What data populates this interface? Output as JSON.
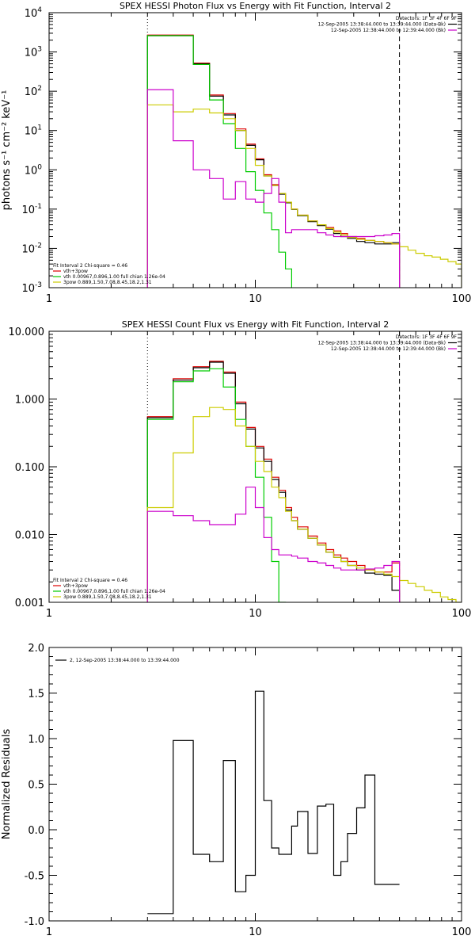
{
  "chart_data": [
    {
      "type": "line",
      "title": "SPEX HESSI Photon Flux vs Energy with Fit Function, Interval 2",
      "xscale": "log",
      "yscale": "log",
      "xlim": [
        1,
        100
      ],
      "ylim": [
        0.001,
        10000
      ],
      "ylabel": "photons s⁻¹ cm⁻² keV⁻¹",
      "xlabel": "",
      "x_tick_labels": [
        "1",
        "10",
        "100"
      ],
      "x_tick_values": [
        1,
        10,
        100
      ],
      "y_tick_values": [
        0.001,
        0.01,
        0.1,
        1,
        10,
        100,
        1000,
        10000
      ],
      "y_ticks": [
        {
          "base": "10",
          "exp": "-3"
        },
        {
          "base": "10",
          "exp": "-2"
        },
        {
          "base": "10",
          "exp": "-1"
        },
        {
          "base": "10",
          "exp": "0"
        },
        {
          "base": "10",
          "exp": "1"
        },
        {
          "base": "10",
          "exp": "2"
        },
        {
          "base": "10",
          "exp": "3"
        },
        {
          "base": "10",
          "exp": "4"
        }
      ],
      "vlines": [
        {
          "x": 3,
          "style": "dotted"
        },
        {
          "x": 50,
          "style": "dashed"
        }
      ],
      "legend_top_right": [
        {
          "text": "Detectors: 1F 3F 4F 6F 9F",
          "color": ""
        },
        {
          "text": "12-Sep-2005 13:38:44.000 to 13:39:44.000 (Data-Bk)",
          "color": "#000000"
        },
        {
          "text": "12-Sep-2005 12:38:44.000 to 12:39:44.000 (Bk)",
          "color": "#cc00cc"
        }
      ],
      "legend_bottom_left": [
        {
          "text": "Fit Interval  2    Chi-square = 0.46",
          "color": ""
        },
        {
          "text": "vth+3pow",
          "color": "#dd0000"
        },
        {
          "text": "vth 0.00967,0.896,1.00   full chian 1.26e-04",
          "color": "#00cc00"
        },
        {
          "text": "3pow 0.889,1.50,7.08,8.45,18.2,1.31",
          "color": "#cccc00"
        }
      ],
      "edges": [
        3,
        4,
        5,
        6,
        7,
        8,
        9,
        10,
        11,
        12,
        13,
        14,
        15,
        16,
        18,
        20,
        22,
        24,
        26,
        28,
        31,
        34,
        38,
        42,
        46,
        50,
        55,
        60,
        66,
        72,
        79,
        86,
        94,
        100
      ],
      "series": [
        {
          "color": "#dd0000",
          "values": [
            2700,
            2700,
            520,
            80,
            27,
            11,
            4.5,
            1.9,
            0.75,
            0.42,
            0.25,
            0.15,
            0.1,
            0.07,
            0.05,
            0.04,
            0.034,
            0.028,
            0.024,
            0.02,
            0.018,
            0.016,
            0.015,
            0.014,
            0.013
          ]
        },
        {
          "color": "#000000",
          "values": [
            2600,
            2600,
            500,
            75,
            25,
            10,
            4.2,
            1.8,
            0.7,
            0.4,
            0.24,
            0.145,
            0.098,
            0.068,
            0.048,
            0.038,
            0.031,
            0.024,
            0.02,
            0.018,
            0.015,
            0.014,
            0.013,
            0.013,
            0.014
          ]
        },
        {
          "color": "#00cc00",
          "values": [
            2600,
            2600,
            480,
            60,
            15,
            3.5,
            0.9,
            0.3,
            0.08,
            0.03,
            0.008,
            0.003,
            0.0009
          ]
        },
        {
          "color": "#cccc00",
          "values": [
            45,
            30,
            35,
            28,
            20,
            10,
            3.5,
            1.3,
            0.7,
            0.4,
            0.25,
            0.15,
            0.1,
            0.07,
            0.05,
            0.04,
            0.032,
            0.026,
            0.022,
            0.019,
            0.017,
            0.016,
            0.015,
            0.014,
            0.013,
            0.011,
            0.009,
            0.0075,
            0.0065,
            0.006,
            0.0053,
            0.0046,
            0.004
          ]
        },
        {
          "color": "#cc00cc",
          "values": [
            110,
            5.5,
            1,
            0.6,
            0.18,
            0.5,
            0.18,
            0.15,
            0.25,
            0.6,
            0.15,
            0.025,
            0.03,
            0.03,
            0.03,
            0.025,
            0.022,
            0.02,
            0.02,
            0.02,
            0.02,
            0.02,
            0.021,
            0.022,
            0.024
          ]
        }
      ]
    },
    {
      "type": "line",
      "title": "SPEX HESSI Count Flux vs Energy with Fit Function, Interval 2",
      "xscale": "log",
      "yscale": "log",
      "xlim": [
        1,
        100
      ],
      "ylim": [
        0.001,
        10
      ],
      "ylabel": "",
      "xlabel": "",
      "x_tick_labels": [
        "1",
        "10",
        "100"
      ],
      "x_tick_values": [
        1,
        10,
        100
      ],
      "y_tick_values": [
        0.001,
        0.01,
        0.1,
        1,
        10
      ],
      "y_tick_labels": [
        "0.001",
        "0.010",
        "0.100",
        "1.000",
        "10.000"
      ],
      "vlines": [
        {
          "x": 3,
          "style": "dotted"
        },
        {
          "x": 50,
          "style": "dashed"
        }
      ],
      "legend_top_right": [
        {
          "text": "Detectors: 1F 3F 4F 6F 9F",
          "color": ""
        },
        {
          "text": "12-Sep-2005 13:38:44.000 to 13:39:44.000 (Data-Bk)",
          "color": "#000000"
        },
        {
          "text": "12-Sep-2005 12:38:44.000 to 12:39:44.000 (Bk)",
          "color": "#cc00cc"
        }
      ],
      "legend_bottom_left": [
        {
          "text": "Fit Interval  2    Chi-square = 0.46",
          "color": ""
        },
        {
          "text": "vth+3pow",
          "color": "#dd0000"
        },
        {
          "text": "vth 0.00967,0.896,1.00   full chian 1.26e-04",
          "color": "#00cc00"
        },
        {
          "text": "3pow 0.889,1.50,7.08,8.45,18.2,1.31",
          "color": "#cccc00"
        }
      ],
      "edges": [
        3,
        4,
        5,
        6,
        7,
        8,
        9,
        10,
        11,
        12,
        13,
        14,
        15,
        16,
        18,
        20,
        22,
        24,
        26,
        28,
        31,
        34,
        38,
        42,
        46,
        50,
        55,
        60,
        66,
        72,
        79,
        86,
        94,
        100
      ],
      "series": [
        {
          "color": "#dd0000",
          "values": [
            0.55,
            2.0,
            3.0,
            3.6,
            2.5,
            0.9,
            0.38,
            0.2,
            0.13,
            0.07,
            0.045,
            0.025,
            0.018,
            0.013,
            0.0095,
            0.0075,
            0.006,
            0.005,
            0.0045,
            0.004,
            0.0035,
            0.003,
            0.0028,
            0.0028,
            0.0038
          ]
        },
        {
          "color": "#000000",
          "values": [
            0.53,
            1.9,
            2.9,
            3.5,
            2.4,
            0.85,
            0.36,
            0.19,
            0.12,
            0.065,
            0.042,
            0.023,
            0.016,
            0.012,
            0.0088,
            0.007,
            0.0055,
            0.0046,
            0.004,
            0.0035,
            0.003,
            0.0027,
            0.0026,
            0.0025,
            0.0015
          ]
        },
        {
          "color": "#00cc00",
          "values": [
            0.5,
            1.8,
            2.6,
            2.8,
            1.5,
            0.5,
            0.2,
            0.07,
            0.018,
            0.004,
            0.001
          ]
        },
        {
          "color": "#cccc00",
          "values": [
            0.025,
            0.16,
            0.55,
            0.75,
            0.7,
            0.4,
            0.2,
            0.12,
            0.085,
            0.05,
            0.035,
            0.022,
            0.016,
            0.012,
            0.0088,
            0.007,
            0.0055,
            0.0046,
            0.004,
            0.0035,
            0.0032,
            0.003,
            0.0028,
            0.0026,
            0.0024,
            0.0021,
            0.0019,
            0.0017,
            0.0015,
            0.0014,
            0.0012,
            0.0011,
            0.001
          ]
        },
        {
          "color": "#cc00cc",
          "values": [
            0.022,
            0.019,
            0.016,
            0.014,
            0.014,
            0.02,
            0.05,
            0.025,
            0.009,
            0.006,
            0.005,
            0.005,
            0.0048,
            0.0045,
            0.004,
            0.0038,
            0.0035,
            0.0032,
            0.003,
            0.003,
            0.003,
            0.0031,
            0.0032,
            0.0035,
            0.004
          ]
        }
      ]
    },
    {
      "type": "line",
      "title": "",
      "xscale": "log",
      "yscale": "linear",
      "xlim": [
        1,
        100
      ],
      "ylim": [
        -1.0,
        2.0
      ],
      "ylabel": "Normalized Residuals",
      "xlabel": "",
      "x_tick_labels": [
        "1",
        "10",
        "100"
      ],
      "x_tick_values": [
        1,
        10,
        100
      ],
      "y_tick_values": [
        -1.0,
        -0.5,
        0.0,
        0.5,
        1.0,
        1.5,
        2.0
      ],
      "y_tick_labels": [
        "-1.0",
        "-0.5",
        "0.0",
        "0.5",
        "1.0",
        "1.5",
        "2.0"
      ],
      "legend": {
        "text": "2, 12-Sep-2005 13:38:44.000 to 13:39:44.000",
        "color": "#000000"
      },
      "edges": [
        3,
        4,
        5,
        6,
        7,
        8,
        9,
        10,
        11,
        12,
        13,
        14,
        15,
        16,
        18,
        20,
        22,
        24,
        26,
        28,
        31,
        34,
        38,
        42,
        46,
        50
      ],
      "series": [
        {
          "color": "#000000",
          "values": [
            -0.92,
            0.98,
            -0.27,
            -0.35,
            0.76,
            -0.68,
            -0.5,
            1.52,
            0.32,
            -0.2,
            -0.27,
            -0.27,
            0.04,
            0.2,
            -0.26,
            0.26,
            0.28,
            -0.5,
            -0.35,
            -0.04,
            0.24,
            0.6,
            -0.6,
            -0.6,
            -0.6
          ]
        }
      ]
    }
  ]
}
